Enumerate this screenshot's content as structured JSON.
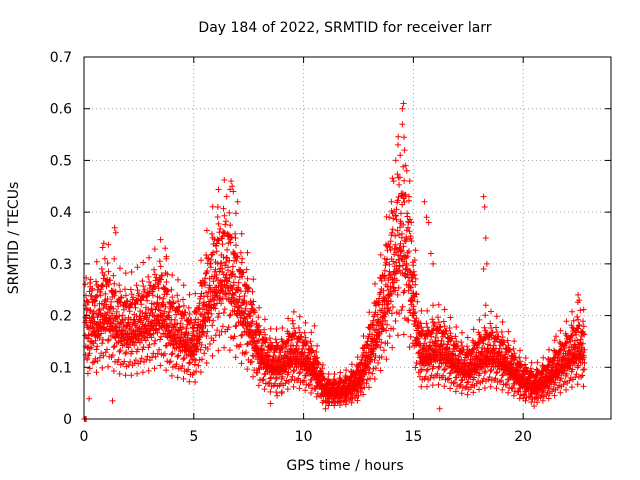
{
  "chart_data": {
    "type": "scatter",
    "title": "Day 184 of 2022, SRMTID for receiver larr",
    "xlabel": "GPS time / hours",
    "ylabel": "SRMTID / TECUs",
    "xlim": [
      0,
      24
    ],
    "ylim": [
      0,
      0.7
    ],
    "x_ticks": [
      0,
      5,
      10,
      15,
      20
    ],
    "x_tick_labels": [
      "0",
      "5",
      "10",
      "15",
      "20"
    ],
    "y_ticks": [
      0,
      0.1,
      0.2,
      0.3,
      0.4,
      0.5,
      0.6,
      0.7
    ],
    "y_tick_labels": [
      "0",
      "0.1",
      "0.2",
      "0.3",
      "0.4",
      "0.5",
      "0.6",
      "0.7"
    ],
    "grid": true,
    "marker": "+",
    "series": [
      {
        "name": "SRMTID",
        "color": "#ff0000",
        "trend": [
          [
            0.05,
            0.17
          ],
          [
            0.5,
            0.17
          ],
          [
            1.0,
            0.2
          ],
          [
            1.5,
            0.17
          ],
          [
            2.0,
            0.16
          ],
          [
            2.5,
            0.17
          ],
          [
            3.0,
            0.18
          ],
          [
            3.5,
            0.2
          ],
          [
            4.0,
            0.16
          ],
          [
            4.5,
            0.15
          ],
          [
            5.0,
            0.13
          ],
          [
            5.5,
            0.2
          ],
          [
            6.0,
            0.25
          ],
          [
            6.5,
            0.27
          ],
          [
            7.0,
            0.22
          ],
          [
            7.5,
            0.18
          ],
          [
            8.0,
            0.12
          ],
          [
            8.5,
            0.1
          ],
          [
            9.0,
            0.1
          ],
          [
            9.5,
            0.12
          ],
          [
            10.0,
            0.11
          ],
          [
            10.5,
            0.09
          ],
          [
            11.0,
            0.05
          ],
          [
            11.5,
            0.05
          ],
          [
            12.0,
            0.055
          ],
          [
            12.5,
            0.07
          ],
          [
            13.0,
            0.12
          ],
          [
            13.5,
            0.18
          ],
          [
            14.0,
            0.26
          ],
          [
            14.4,
            0.33
          ],
          [
            14.7,
            0.3
          ],
          [
            15.0,
            0.22
          ],
          [
            15.3,
            0.12
          ],
          [
            15.7,
            0.12
          ],
          [
            16.0,
            0.13
          ],
          [
            16.5,
            0.12
          ],
          [
            17.0,
            0.1
          ],
          [
            17.5,
            0.09
          ],
          [
            18.0,
            0.11
          ],
          [
            18.5,
            0.12
          ],
          [
            19.0,
            0.11
          ],
          [
            19.5,
            0.09
          ],
          [
            20.0,
            0.07
          ],
          [
            20.5,
            0.06
          ],
          [
            21.0,
            0.07
          ],
          [
            21.5,
            0.09
          ],
          [
            22.0,
            0.11
          ],
          [
            22.5,
            0.13
          ],
          [
            22.8,
            0.12
          ]
        ],
        "points": [
          [
            0.02,
            0.0
          ],
          [
            0.04,
            0.0
          ],
          [
            0.06,
            0.0
          ],
          [
            0.1,
            0.0
          ],
          [
            0.1,
            0.19
          ],
          [
            0.3,
            0.27
          ],
          [
            0.9,
            0.34
          ],
          [
            0.95,
            0.31
          ],
          [
            1.4,
            0.37
          ],
          [
            1.45,
            0.36
          ],
          [
            1.3,
            0.035
          ],
          [
            3.7,
            0.33
          ],
          [
            3.75,
            0.31
          ],
          [
            3.8,
            0.28
          ],
          [
            6.1,
            0.41
          ],
          [
            6.5,
            0.43
          ],
          [
            6.7,
            0.46
          ],
          [
            6.75,
            0.45
          ],
          [
            6.8,
            0.44
          ],
          [
            7.0,
            0.42
          ],
          [
            6.9,
            0.35
          ],
          [
            7.2,
            0.31
          ],
          [
            8.5,
            0.03
          ],
          [
            8.8,
            0.045
          ],
          [
            9.0,
            0.05
          ],
          [
            9.5,
            0.19
          ],
          [
            10.5,
            0.18
          ],
          [
            11.0,
            0.02
          ],
          [
            12.6,
            0.06
          ],
          [
            13.7,
            0.31
          ],
          [
            13.9,
            0.39
          ],
          [
            14.0,
            0.42
          ],
          [
            14.1,
            0.46
          ],
          [
            14.2,
            0.5
          ],
          [
            14.3,
            0.53
          ],
          [
            14.4,
            0.51
          ],
          [
            14.5,
            0.6
          ],
          [
            14.55,
            0.61
          ],
          [
            14.5,
            0.57
          ],
          [
            14.6,
            0.52
          ],
          [
            14.65,
            0.49
          ],
          [
            14.7,
            0.48
          ],
          [
            14.8,
            0.43
          ],
          [
            14.9,
            0.38
          ],
          [
            15.0,
            0.2
          ],
          [
            15.5,
            0.42
          ],
          [
            15.6,
            0.39
          ],
          [
            15.7,
            0.38
          ],
          [
            15.8,
            0.32
          ],
          [
            15.9,
            0.3
          ],
          [
            16.2,
            0.02
          ],
          [
            16.5,
            0.17
          ],
          [
            18.2,
            0.43
          ],
          [
            18.25,
            0.41
          ],
          [
            18.3,
            0.35
          ],
          [
            18.2,
            0.29
          ],
          [
            18.35,
            0.3
          ],
          [
            18.3,
            0.22
          ],
          [
            20.0,
            0.04
          ],
          [
            20.5,
            0.025
          ],
          [
            21.5,
            0.16
          ],
          [
            22.3,
            0.19
          ],
          [
            22.5,
            0.24
          ],
          [
            22.55,
            0.23
          ],
          [
            22.6,
            0.21
          ]
        ]
      }
    ]
  }
}
